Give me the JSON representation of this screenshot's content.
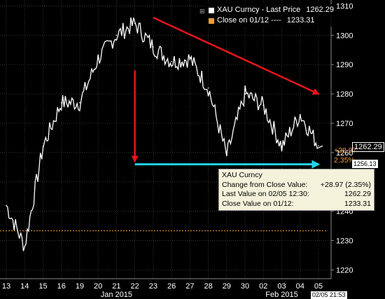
{
  "chart_data": {
    "type": "line",
    "series": [
      {
        "name": "XAU Curncy - Last Price",
        "color": "#ffffff",
        "x": [
          "01/13",
          "01/14",
          "01/15",
          "01/16",
          "01/19",
          "01/20",
          "01/21",
          "01/22",
          "01/23",
          "01/26",
          "01/27",
          "01/28",
          "01/29",
          "01/30",
          "02/02",
          "02/03",
          "02/04",
          "02/05"
        ],
        "values": [
          1242,
          1228,
          1262,
          1277,
          1277,
          1292,
          1300,
          1304,
          1296,
          1291,
          1292,
          1282,
          1259,
          1280,
          1276,
          1262,
          1273,
          1262.29
        ]
      },
      {
        "name": "Close on 01/12",
        "color": "#f39c34",
        "dashed": true,
        "value": 1233.31
      }
    ],
    "ylim": [
      1217,
      1312
    ],
    "y_ticks": [
      1220,
      1230,
      1240,
      1250,
      1260,
      1270,
      1280,
      1290,
      1300,
      1310
    ],
    "x_tick_labels": [
      "13",
      "14",
      "15",
      "16",
      "19",
      "20",
      "21",
      "22",
      "23",
      "26",
      "27",
      "28",
      "29",
      "30",
      "02",
      "03",
      "04",
      "05"
    ],
    "month_labels": [
      "Jan 2015",
      "Feb 2015"
    ],
    "grid": true,
    "legend": {
      "position": "top-right",
      "entries": [
        {
          "label": "XAU Curncy - Last Price",
          "value": "1262.29",
          "color": "#ffffff"
        },
        {
          "label": "Close on 01/12 ----",
          "value": "1233.31",
          "color": "#f39c34"
        }
      ]
    },
    "price_labels": {
      "last": "1262.29",
      "change": "+28.97",
      "change_pct": "2.35%",
      "low": "1256.13",
      "timestamp": "02/05 21:53"
    },
    "tooltip": {
      "title": "XAU Curncy",
      "rows": [
        {
          "label": "Change from Close Value:",
          "value": "+28.97 (2.35%)"
        },
        {
          "label": "Last Value on 02/05 12:30:",
          "value": "1262.29"
        },
        {
          "label": "Close Value on 01/12:",
          "value": "1233.31"
        }
      ]
    },
    "annotations": [
      {
        "type": "arrow",
        "color": "#e8141b",
        "from": [
          "01/23",
          1306
        ],
        "to": [
          "02/05",
          1280
        ]
      },
      {
        "type": "arrow",
        "color": "#e8141b",
        "from": [
          "01/22",
          1288
        ],
        "to": [
          "01/22",
          1257
        ]
      },
      {
        "type": "arrow",
        "color": "#22d4e8",
        "from": [
          "01/22",
          1256
        ],
        "to": [
          "02/05",
          1256
        ]
      }
    ]
  }
}
